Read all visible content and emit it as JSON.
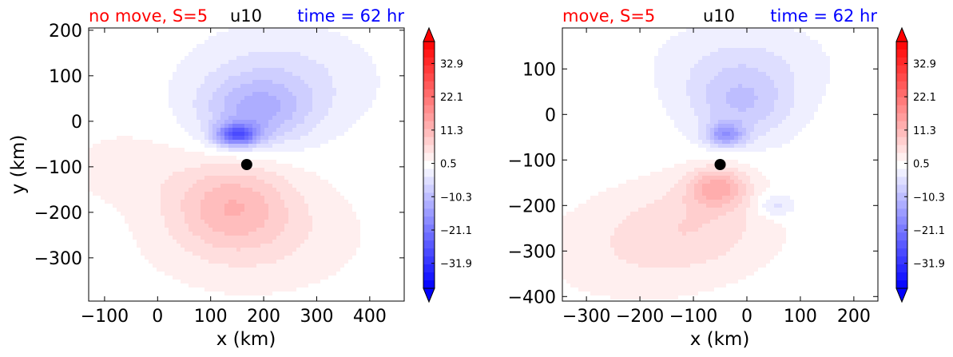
{
  "colors": {
    "title_left": "#ff0000",
    "title_center": "#000000",
    "title_right": "#0000ff",
    "positive": "#ff0000",
    "negative": "#0000ff",
    "marker": "#000000"
  },
  "colorbar": {
    "ticks": [
      "32.9",
      "22.1",
      "11.3",
      "0.5",
      "−10.3",
      "−21.1",
      "−31.9"
    ],
    "range": [
      -40,
      40
    ],
    "extend": "both",
    "levels": 31
  },
  "chart_data": [
    {
      "type": "heatmap",
      "title_left": "no move, S=5",
      "title_center": "u10",
      "title_right": "time = 62 hr",
      "xlabel": "x (km)",
      "ylabel": "y (km)",
      "xlim": [
        -130,
        465
      ],
      "ylim": [
        -395,
        205
      ],
      "xticks": [
        -100,
        0,
        100,
        200,
        300,
        400
      ],
      "xtick_labels": [
        "−100",
        "0",
        "100",
        "200",
        "300",
        "400"
      ],
      "yticks": [
        200,
        100,
        0,
        -100,
        -200,
        -300
      ],
      "ytick_labels": [
        "200",
        "100",
        "0",
        "−100",
        "−200",
        "−300"
      ],
      "marker": {
        "x": 168,
        "y": -95
      },
      "field": [
        {
          "x": 150,
          "y": -30,
          "sx": 40,
          "sy": 25,
          "a": -22
        },
        {
          "x": 185,
          "y": 20,
          "sx": 100,
          "sy": 75,
          "a": -10
        },
        {
          "x": 230,
          "y": 90,
          "sx": 160,
          "sy": 110,
          "a": -5
        },
        {
          "x": 140,
          "y": -180,
          "sx": 110,
          "sy": 95,
          "a": 9
        },
        {
          "x": 180,
          "y": -250,
          "sx": 190,
          "sy": 120,
          "a": 4
        },
        {
          "x": -60,
          "y": -100,
          "sx": 110,
          "sy": 80,
          "a": 2.5
        }
      ]
    },
    {
      "type": "heatmap",
      "title_left": "move, S=5",
      "title_center": "u10",
      "title_right": "time = 62 hr",
      "xlabel": "x (km)",
      "ylabel": "",
      "xlim": [
        -345,
        245
      ],
      "ylim": [
        -410,
        190
      ],
      "xticks": [
        -300,
        -200,
        -100,
        0,
        100,
        200
      ],
      "xtick_labels": [
        "−300",
        "−200",
        "−100",
        "0",
        "100",
        "200"
      ],
      "yticks": [
        100,
        0,
        -100,
        -200,
        -300,
        -400
      ],
      "ytick_labels": [
        "100",
        "0",
        "−100",
        "−200",
        "−300",
        "−400"
      ],
      "marker": {
        "x": -50,
        "y": -110
      },
      "field": [
        {
          "x": -40,
          "y": -45,
          "sx": 35,
          "sy": 25,
          "a": -14
        },
        {
          "x": -10,
          "y": 20,
          "sx": 95,
          "sy": 80,
          "a": -8
        },
        {
          "x": -10,
          "y": 110,
          "sx": 150,
          "sy": 90,
          "a": -4
        },
        {
          "x": 55,
          "y": -200,
          "sx": 35,
          "sy": 25,
          "a": -6
        },
        {
          "x": -55,
          "y": -160,
          "sx": 55,
          "sy": 45,
          "a": 11
        },
        {
          "x": -90,
          "y": -240,
          "sx": 140,
          "sy": 100,
          "a": 5
        },
        {
          "x": -220,
          "y": -300,
          "sx": 170,
          "sy": 110,
          "a": 3
        }
      ]
    }
  ]
}
